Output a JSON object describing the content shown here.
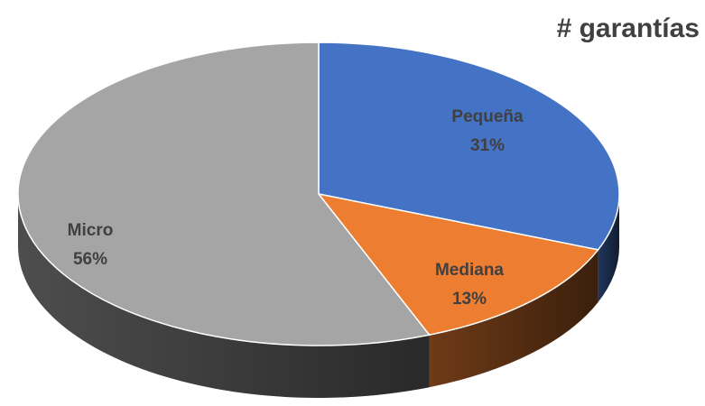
{
  "chart_data": {
    "type": "pie",
    "title": "# garantías",
    "categories": [
      "Pequeña",
      "Mediana",
      "Micro"
    ],
    "values": [
      31,
      13,
      56
    ],
    "value_labels": [
      "31%",
      "13%",
      "56%"
    ],
    "colors": [
      "#4472c4",
      "#ed7d31",
      "#a5a5a5"
    ]
  }
}
